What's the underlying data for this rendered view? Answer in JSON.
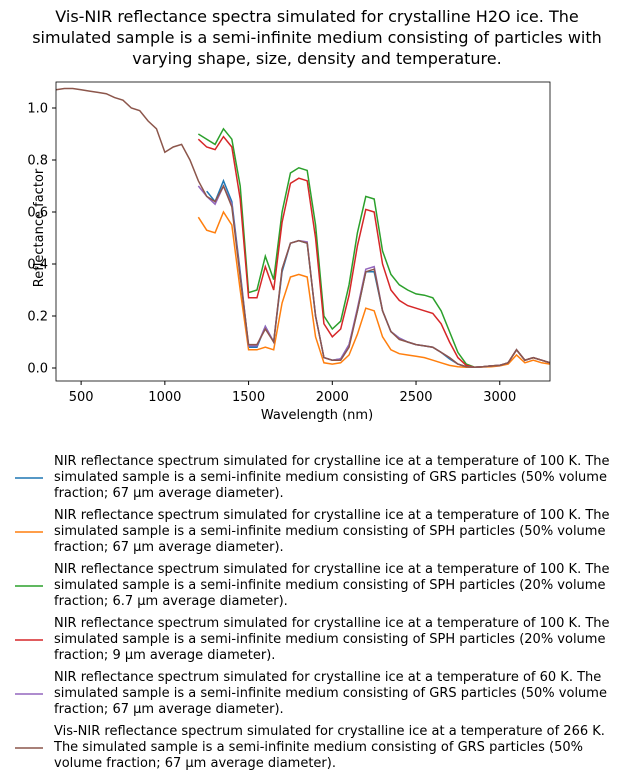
{
  "chart_data": {
    "type": "line",
    "title": "Vis-NIR reflectance spectra simulated for crystalline H2O ice. The simulated sample is a semi-infinite medium consisting of particles with varying shape, size, density and temperature.",
    "x_label": "Wavelength (nm)",
    "y_label": "Reflectance factor",
    "xlim": [
      350,
      3300
    ],
    "ylim": [
      -0.05,
      1.1
    ],
    "xticks": [
      500,
      1000,
      1500,
      2000,
      2500,
      3000
    ],
    "yticks": [
      {
        "value": 0,
        "label": "0.0"
      },
      0.2,
      0.4,
      0.6,
      0.8,
      {
        "value": 1,
        "label": "1.0"
      }
    ],
    "x": [
      350,
      400,
      450,
      500,
      550,
      600,
      650,
      700,
      750,
      800,
      850,
      900,
      950,
      1000,
      1050,
      1100,
      1150,
      1200,
      1250,
      1300,
      1350,
      1400,
      1450,
      1500,
      1550,
      1600,
      1650,
      1700,
      1750,
      1800,
      1850,
      1900,
      1950,
      2000,
      2050,
      2100,
      2150,
      2200,
      2250,
      2300,
      2350,
      2400,
      2450,
      2500,
      2550,
      2600,
      2650,
      2700,
      2750,
      2800,
      2850,
      2900,
      2950,
      3000,
      3050,
      3100,
      3150,
      3200,
      3250,
      3300
    ],
    "series": [
      {
        "name": "NIR reflectance spectrum simulated for crystalline ice at a temperature of 100 K. The simulated sample is a semi-infinite medium consisting of GRS particles (50% volume fraction; 67 µm average diameter).",
        "color": "#1f77b4",
        "values": [
          null,
          null,
          null,
          null,
          null,
          null,
          null,
          null,
          null,
          null,
          null,
          null,
          null,
          null,
          null,
          null,
          null,
          null,
          0.68,
          0.64,
          0.72,
          0.64,
          0.37,
          0.08,
          0.08,
          0.16,
          0.1,
          0.37,
          0.48,
          0.49,
          0.48,
          0.2,
          0.04,
          0.03,
          0.035,
          0.09,
          0.22,
          0.37,
          0.37,
          0.22,
          0.14,
          0.115,
          0.1,
          0.09,
          0.085,
          0.08,
          0.06,
          0.035,
          0.015,
          0.005,
          0.003,
          0.005,
          0.008,
          0.01,
          0.02,
          0.07,
          0.03,
          0.04,
          0.03,
          0.02
        ]
      },
      {
        "name": "NIR reflectance spectrum simulated for crystalline ice at a temperature of 100 K. The simulated sample is a semi-infinite medium consisting of SPH particles (50% volume fraction; 67 µm average diameter).",
        "color": "#ff7f0e",
        "values": [
          null,
          null,
          null,
          null,
          null,
          null,
          null,
          null,
          null,
          null,
          null,
          null,
          null,
          null,
          null,
          null,
          null,
          0.58,
          0.53,
          0.52,
          0.6,
          0.55,
          0.3,
          0.07,
          0.07,
          0.08,
          0.07,
          0.25,
          0.35,
          0.36,
          0.35,
          0.12,
          0.02,
          0.015,
          0.02,
          0.05,
          0.13,
          0.23,
          0.22,
          0.12,
          0.07,
          0.055,
          0.05,
          0.045,
          0.04,
          0.03,
          0.02,
          0.01,
          0.005,
          0.003,
          0.003,
          0.004,
          0.005,
          0.008,
          0.015,
          0.05,
          0.02,
          0.03,
          0.02,
          0.015
        ]
      },
      {
        "name": "NIR reflectance spectrum simulated for crystalline ice at a temperature of 100 K. The simulated sample is a semi-infinite medium consisting of SPH particles (20% volume fraction; 6.7 µm average diameter).",
        "color": "#2ca02c",
        "values": [
          null,
          null,
          null,
          null,
          null,
          null,
          null,
          null,
          null,
          null,
          null,
          null,
          null,
          null,
          null,
          null,
          null,
          0.9,
          0.88,
          0.86,
          0.92,
          0.88,
          0.7,
          0.29,
          0.3,
          0.43,
          0.34,
          0.6,
          0.75,
          0.77,
          0.76,
          0.55,
          0.2,
          0.15,
          0.18,
          0.32,
          0.52,
          0.66,
          0.65,
          0.45,
          0.36,
          0.32,
          0.3,
          0.285,
          0.28,
          0.27,
          0.22,
          0.14,
          0.06,
          0.015,
          0.003,
          0.005,
          0.008,
          0.01,
          0.02,
          0.07,
          0.03,
          0.04,
          0.03,
          0.02
        ]
      },
      {
        "name": "NIR reflectance spectrum simulated for crystalline ice at a temperature of 100 K. The simulated sample is a semi-infinite medium consisting of SPH particles (20% volume fraction; 9 µm average diameter).",
        "color": "#d62728",
        "values": [
          null,
          null,
          null,
          null,
          null,
          null,
          null,
          null,
          null,
          null,
          null,
          null,
          null,
          null,
          null,
          null,
          null,
          0.88,
          0.85,
          0.84,
          0.89,
          0.85,
          0.65,
          0.27,
          0.27,
          0.39,
          0.3,
          0.56,
          0.71,
          0.73,
          0.72,
          0.5,
          0.17,
          0.12,
          0.15,
          0.28,
          0.47,
          0.61,
          0.6,
          0.4,
          0.3,
          0.26,
          0.24,
          0.23,
          0.22,
          0.21,
          0.17,
          0.1,
          0.04,
          0.01,
          0.003,
          0.005,
          0.008,
          0.01,
          0.02,
          0.07,
          0.03,
          0.04,
          0.03,
          0.02
        ]
      },
      {
        "name": "NIR reflectance spectrum simulated for crystalline ice at a temperature of 60 K. The simulated sample is a semi-infinite medium consisting of GRS particles (50% volume fraction; 67 µm average diameter).",
        "color": "#9467bd",
        "values": [
          null,
          null,
          null,
          null,
          null,
          null,
          null,
          null,
          null,
          null,
          null,
          null,
          null,
          null,
          null,
          null,
          null,
          0.7,
          0.66,
          0.63,
          0.7,
          0.63,
          0.36,
          0.085,
          0.085,
          0.16,
          0.1,
          0.38,
          0.48,
          0.49,
          0.485,
          0.2,
          0.04,
          0.03,
          0.035,
          0.09,
          0.23,
          0.38,
          0.39,
          0.22,
          0.14,
          0.115,
          0.1,
          0.09,
          0.085,
          0.08,
          0.06,
          0.04,
          0.015,
          0.005,
          0.003,
          0.005,
          0.008,
          0.01,
          0.02,
          0.07,
          0.03,
          0.04,
          0.03,
          0.02
        ]
      },
      {
        "name": "Vis-NIR reflectance spectrum simulated for crystalline ice at a temperature of 266 K. The simulated sample is a semi-infinite medium consisting of GRS particles (50% volume fraction; 67 µm average diameter).",
        "color": "#8c564b",
        "values": [
          1.07,
          1.075,
          1.075,
          1.07,
          1.065,
          1.06,
          1.055,
          1.04,
          1.03,
          1.0,
          0.99,
          0.95,
          0.92,
          0.83,
          0.85,
          0.86,
          0.8,
          0.72,
          0.66,
          0.64,
          0.7,
          0.62,
          0.35,
          0.09,
          0.09,
          0.15,
          0.1,
          0.38,
          0.48,
          0.49,
          0.48,
          0.2,
          0.04,
          0.03,
          0.03,
          0.08,
          0.22,
          0.37,
          0.38,
          0.22,
          0.14,
          0.11,
          0.1,
          0.09,
          0.085,
          0.08,
          0.06,
          0.04,
          0.015,
          0.005,
          0.003,
          0.005,
          0.008,
          0.01,
          0.02,
          0.07,
          0.03,
          0.04,
          0.03,
          0.02
        ]
      }
    ]
  }
}
